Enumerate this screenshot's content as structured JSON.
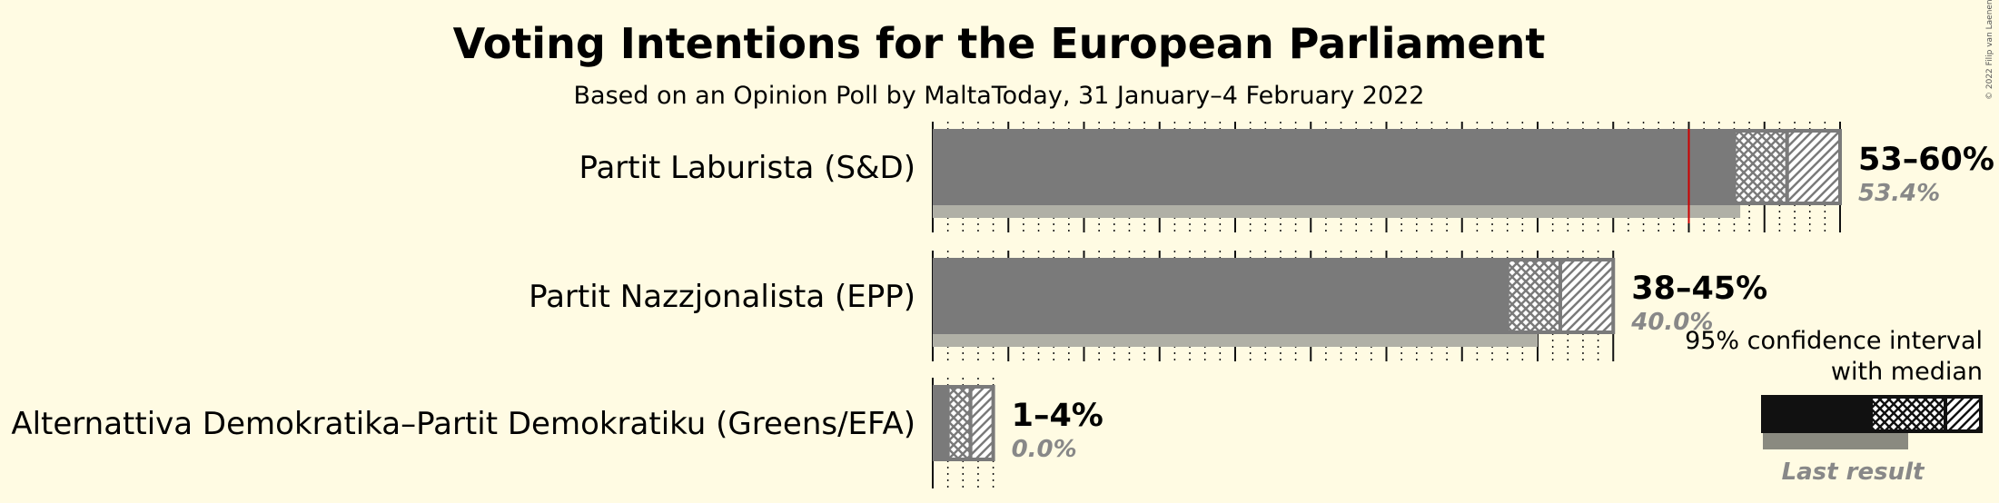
{
  "chart_data": {
    "type": "bar",
    "title": "Voting Intentions for the European Parliament",
    "subtitle": "Based on an Opinion Poll by MaltaToday, 31 January–4 February 2022",
    "copyright": "© 2022 Filip van Laenen",
    "series": [
      {
        "name": "Partit Laburista (S&D)",
        "low": 53,
        "median": 56.5,
        "high": 60,
        "ci_label": "53–60%",
        "last_result": 53.4,
        "last_label": "53.4%"
      },
      {
        "name": "Partit Nazzjonalista (EPP)",
        "low": 38,
        "median": 41.5,
        "high": 45,
        "ci_label": "38–45%",
        "last_result": 40.0,
        "last_label": "40.0%"
      },
      {
        "name": "Alternattiva Demokratika–Partit Demokratiku (Greens/EFA)",
        "low": 1,
        "median": 2.5,
        "high": 4,
        "ci_label": "1–4%",
        "last_result": 0.0,
        "last_label": "0.0%"
      }
    ],
    "majority_line": 50,
    "xlim": [
      0,
      60
    ],
    "gridlines_major_every": 5,
    "gridlines_minor_every": 1,
    "legend": {
      "title_line1": "95% confidence interval",
      "title_line2": "with median",
      "last_result": "Last result",
      "placement": "bottom-right"
    },
    "colors": {
      "background": "#fffbe3",
      "bar": "#7a7a7a",
      "last_result": "#b0b0a6",
      "majority": "#cc0000",
      "legend_bar": "#111111",
      "legend_last": "#8a8a80"
    }
  }
}
